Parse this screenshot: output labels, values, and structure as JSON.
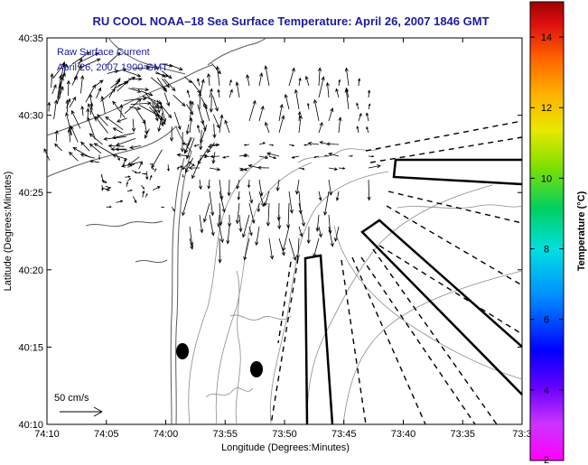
{
  "header": {
    "title": "RU COOL  NOAA–18  Sea Surface Temperature:  April 26, 2007 1846 GMT"
  },
  "map": {
    "xlabel": "Longitude (Degrees:Minutes)",
    "ylabel": "Latitude (Degrees:Minutes)",
    "x_ticks": [
      "74:10",
      "74:05",
      "74:00",
      "73:55",
      "73:50",
      "73:45",
      "73:40",
      "73:35",
      "73:3"
    ],
    "y_ticks": [
      "40:35",
      "40:30",
      "40:25",
      "40:20",
      "40:15",
      "40:10"
    ],
    "overlay_lines": [
      "Raw Surface Current",
      "April 26, 2007 1900 GMT"
    ],
    "scale_label": "50 cm/s"
  },
  "colorbar": {
    "label": "Temperature (°C)",
    "ticks": [
      "2",
      "4",
      "6",
      "8",
      "10",
      "12",
      "14"
    ],
    "range": [
      2,
      15
    ]
  }
}
